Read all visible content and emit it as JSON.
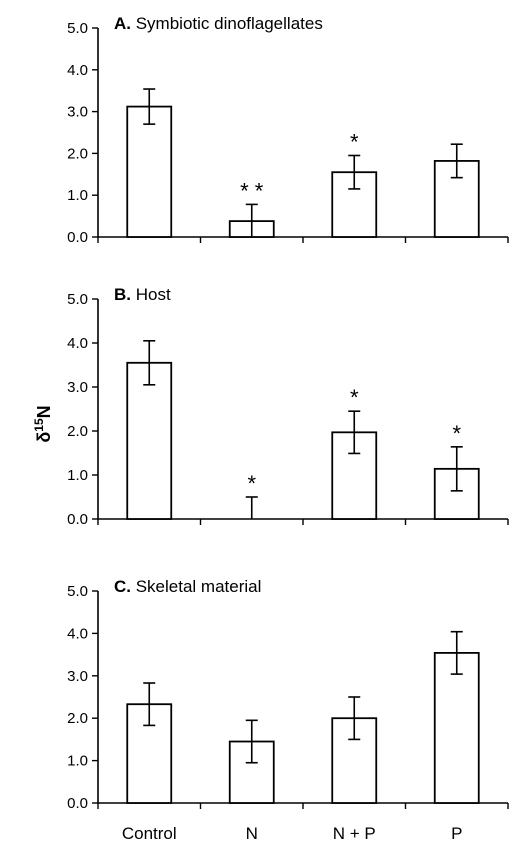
{
  "ylabel": {
    "base": "δ",
    "sup": "15",
    "rest": "N"
  },
  "chart_data": [
    {
      "type": "bar",
      "letter": "A.",
      "title": "Symbiotic dinoflagellates",
      "categories": [
        "Control",
        "N",
        "N + P",
        "P"
      ],
      "values": [
        3.12,
        0.38,
        1.55,
        1.82
      ],
      "errors": [
        0.42,
        0.4,
        0.4,
        0.4
      ],
      "annotations": [
        "",
        "* *",
        "*",
        ""
      ],
      "ylim": [
        0,
        5
      ],
      "yticks": [
        "0.0",
        "1.0",
        "2.0",
        "3.0",
        "4.0",
        "5.0"
      ]
    },
    {
      "type": "bar",
      "letter": "B.",
      "title": "Host",
      "categories": [
        "Control",
        "N",
        "N + P",
        "P"
      ],
      "values": [
        3.55,
        0.0,
        1.97,
        1.14
      ],
      "errors": [
        0.5,
        0.5,
        0.48,
        0.5
      ],
      "annotations": [
        "",
        "*",
        "*",
        "*"
      ],
      "ylim": [
        0,
        5
      ],
      "yticks": [
        "0.0",
        "1.0",
        "2.0",
        "3.0",
        "4.0",
        "5.0"
      ]
    },
    {
      "type": "bar",
      "letter": "C.",
      "title": "Skeletal material",
      "categories": [
        "Control",
        "N",
        "N + P",
        "P"
      ],
      "values": [
        2.33,
        1.45,
        2.0,
        3.54
      ],
      "errors": [
        0.5,
        0.5,
        0.5,
        0.5
      ],
      "annotations": [
        "",
        "",
        "",
        ""
      ],
      "ylim": [
        0,
        5
      ],
      "yticks": [
        "0.0",
        "1.0",
        "2.0",
        "3.0",
        "4.0",
        "5.0"
      ]
    }
  ]
}
